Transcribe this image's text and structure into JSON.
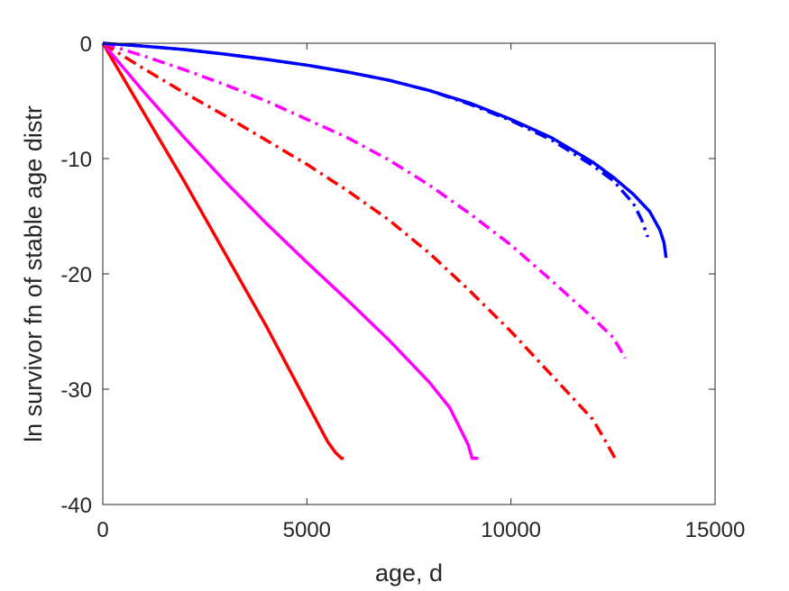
{
  "chart_data": {
    "type": "line",
    "xlabel": "age, d",
    "ylabel": "ln survivor fn of stable age distr",
    "xlim": [
      0,
      15000
    ],
    "ylim": [
      -40,
      0
    ],
    "xticks": [
      0,
      5000,
      10000,
      15000
    ],
    "xtick_labels": [
      "0",
      "5000",
      "10000",
      "15000"
    ],
    "yticks": [
      0,
      -10,
      -20,
      -30,
      -40
    ],
    "ytick_labels": [
      "0",
      "-10",
      "-20",
      "-30",
      "-40"
    ],
    "grid": false,
    "box": true,
    "series": [
      {
        "color": "#ff0000",
        "style": "solid",
        "x": [
          0,
          2000,
          4000,
          5500,
          5700,
          5850,
          5900
        ],
        "y": [
          0,
          -12,
          -24.5,
          -34.5,
          -35.5,
          -36,
          -36
        ]
      },
      {
        "color": "#ff00ff",
        "style": "solid",
        "x": [
          0,
          1000,
          2000,
          3000,
          4000,
          5000,
          6000,
          7000,
          8000,
          8500,
          8950,
          9050,
          9200
        ],
        "y": [
          0,
          -4.2,
          -8.2,
          -12,
          -15.6,
          -19,
          -22.3,
          -25.7,
          -29.4,
          -31.6,
          -34.8,
          -36,
          -36
        ]
      },
      {
        "color": "#ff0000",
        "style": "dashdot",
        "x": [
          0,
          1000,
          2000,
          3000,
          4000,
          5000,
          6000,
          7000,
          8000,
          9000,
          10000,
          11000,
          12000,
          12300,
          12550
        ],
        "y": [
          0,
          -2.2,
          -4.3,
          -6.3,
          -8.4,
          -10.5,
          -12.8,
          -15.3,
          -18.2,
          -21.5,
          -25,
          -28.8,
          -32.6,
          -34.4,
          -36
        ]
      },
      {
        "color": "#ff00ff",
        "style": "dashdot",
        "x": [
          0,
          1000,
          2000,
          3000,
          4000,
          5000,
          6000,
          7000,
          8000,
          9000,
          10000,
          11000,
          12000,
          12500,
          12800
        ],
        "y": [
          0,
          -1.1,
          -2.3,
          -3.6,
          -5,
          -6.6,
          -8.2,
          -10.1,
          -12.3,
          -14.8,
          -17.5,
          -20.6,
          -23.8,
          -25.5,
          -27.3
        ]
      },
      {
        "color": "#0000ff",
        "style": "dashdot",
        "x": [
          0,
          1000,
          2000,
          3000,
          4000,
          5000,
          6000,
          7000,
          8000,
          9000,
          10000,
          11000,
          12000,
          12500,
          13000,
          13200,
          13350
        ],
        "y": [
          0,
          -0.25,
          -0.55,
          -0.95,
          -1.4,
          -1.9,
          -2.5,
          -3.2,
          -4.1,
          -5.3,
          -6.7,
          -8.4,
          -10.6,
          -11.9,
          -13.9,
          -15.3,
          -16.8
        ]
      },
      {
        "color": "#0000ff",
        "style": "solid",
        "x": [
          0,
          1000,
          2000,
          3000,
          4000,
          5000,
          6000,
          7000,
          8000,
          9000,
          10000,
          11000,
          12000,
          12500,
          13000,
          13400,
          13650,
          13750,
          13800
        ],
        "y": [
          0,
          -0.25,
          -0.55,
          -0.95,
          -1.4,
          -1.9,
          -2.5,
          -3.2,
          -4.1,
          -5.2,
          -6.6,
          -8.2,
          -10.3,
          -11.6,
          -13.1,
          -14.6,
          -16.2,
          -17.3,
          -18.6
        ]
      }
    ]
  }
}
